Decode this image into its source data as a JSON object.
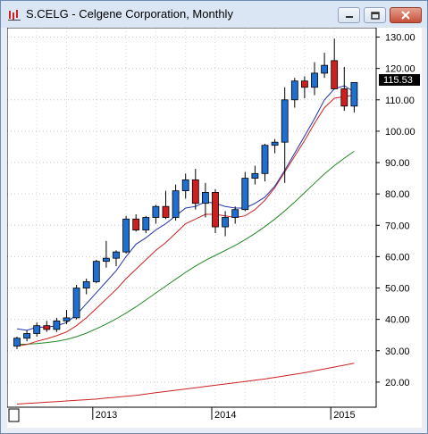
{
  "window": {
    "title": "S.CELG - Celgene Corporation, Monthly",
    "buttons": [
      {
        "name": "minimize-button",
        "icon": "minimize-icon"
      },
      {
        "name": "maximize-button",
        "icon": "maximize-icon"
      },
      {
        "name": "close-button",
        "icon": "close-icon"
      }
    ]
  },
  "chart_data": {
    "type": "candlestick",
    "title": "",
    "last_price_label": "115.53",
    "colors": {
      "up": "#1f6fd1",
      "down": "#cc1f1f",
      "ma_fast": "#2233aa",
      "ma_mid": "#cc2222",
      "ma_slow": "#228822",
      "ma_long": "#cc2222"
    },
    "ylim": [
      12,
      133
    ],
    "y_ticks": [
      20,
      30,
      40,
      50,
      60,
      70,
      80,
      90,
      100,
      110,
      120,
      130
    ],
    "y_tick_labels": [
      "20.00",
      "30.00",
      "40.00",
      "50.00",
      "60.00",
      "70.00",
      "80.00",
      "90.00",
      "100.00",
      "110.00",
      "120.00",
      "130.00"
    ],
    "x_year_labels": [
      {
        "label": "2013",
        "bar_index": 8
      },
      {
        "label": "2014",
        "bar_index": 20
      },
      {
        "label": "2015",
        "bar_index": 32
      }
    ],
    "candles": [
      {
        "o": 31.5,
        "h": 34.5,
        "l": 30.5,
        "c": 34.0
      },
      {
        "o": 34.0,
        "h": 36.5,
        "l": 33.0,
        "c": 35.5
      },
      {
        "o": 35.5,
        "h": 39.0,
        "l": 34.5,
        "c": 38.0
      },
      {
        "o": 38.0,
        "h": 39.5,
        "l": 36.0,
        "c": 36.8
      },
      {
        "o": 36.8,
        "h": 40.5,
        "l": 36.0,
        "c": 39.5
      },
      {
        "o": 39.5,
        "h": 43.0,
        "l": 38.5,
        "c": 40.5
      },
      {
        "o": 40.5,
        "h": 51.0,
        "l": 40.0,
        "c": 50.0
      },
      {
        "o": 50.0,
        "h": 53.0,
        "l": 48.0,
        "c": 52.0
      },
      {
        "o": 52.0,
        "h": 59.0,
        "l": 51.5,
        "c": 58.5
      },
      {
        "o": 58.5,
        "h": 65.0,
        "l": 56.5,
        "c": 59.5
      },
      {
        "o": 59.5,
        "h": 62.0,
        "l": 57.0,
        "c": 61.5
      },
      {
        "o": 61.5,
        "h": 73.0,
        "l": 61.0,
        "c": 72.0
      },
      {
        "o": 72.0,
        "h": 73.5,
        "l": 68.0,
        "c": 68.5
      },
      {
        "o": 68.5,
        "h": 73.0,
        "l": 67.5,
        "c": 72.5
      },
      {
        "o": 72.5,
        "h": 76.5,
        "l": 70.5,
        "c": 76.0
      },
      {
        "o": 76.0,
        "h": 81.0,
        "l": 72.0,
        "c": 72.5
      },
      {
        "o": 72.5,
        "h": 83.0,
        "l": 71.5,
        "c": 81.0
      },
      {
        "o": 81.0,
        "h": 86.5,
        "l": 78.5,
        "c": 84.5
      },
      {
        "o": 84.5,
        "h": 88.0,
        "l": 75.0,
        "c": 77.0
      },
      {
        "o": 77.0,
        "h": 83.5,
        "l": 72.5,
        "c": 80.5
      },
      {
        "o": 80.5,
        "h": 81.5,
        "l": 67.5,
        "c": 69.5
      },
      {
        "o": 69.5,
        "h": 74.5,
        "l": 66.5,
        "c": 72.5
      },
      {
        "o": 72.5,
        "h": 76.0,
        "l": 70.5,
        "c": 75.0
      },
      {
        "o": 75.0,
        "h": 87.0,
        "l": 74.5,
        "c": 85.0
      },
      {
        "o": 85.0,
        "h": 89.0,
        "l": 83.0,
        "c": 86.5
      },
      {
        "o": 86.5,
        "h": 96.0,
        "l": 84.0,
        "c": 95.5
      },
      {
        "o": 95.5,
        "h": 97.5,
        "l": 93.0,
        "c": 96.5
      },
      {
        "o": 96.5,
        "h": 114.0,
        "l": 83.5,
        "c": 110.0
      },
      {
        "o": 110.0,
        "h": 117.0,
        "l": 107.5,
        "c": 116.0
      },
      {
        "o": 116.0,
        "h": 117.5,
        "l": 110.5,
        "c": 114.0
      },
      {
        "o": 114.0,
        "h": 122.0,
        "l": 111.5,
        "c": 118.5
      },
      {
        "o": 118.5,
        "h": 125.0,
        "l": 117.0,
        "c": 121.0
      },
      {
        "o": 122.5,
        "h": 129.5,
        "l": 114.0,
        "c": 113.5
      },
      {
        "o": 113.5,
        "h": 120.5,
        "l": 106.5,
        "c": 108.0
      },
      {
        "o": 108.0,
        "h": 115.5,
        "l": 106.0,
        "c": 115.53
      }
    ],
    "ma_fast": [
      37.0,
      36.5,
      37.5,
      37.5,
      38.0,
      39.0,
      41.5,
      45.0,
      48.5,
      52.0,
      55.5,
      60.0,
      64.0,
      66.0,
      68.5,
      70.5,
      73.0,
      75.5,
      76.0,
      77.5,
      77.0,
      76.0,
      75.5,
      75.5,
      77.0,
      79.0,
      82.5,
      87.5,
      93.0,
      98.5,
      104.0,
      110.0,
      113.5,
      114.5,
      112.5
    ],
    "ma_mid": [
      31.5,
      32.0,
      33.0,
      33.8,
      34.8,
      36.0,
      38.0,
      40.5,
      43.5,
      46.5,
      49.5,
      53.0,
      56.0,
      59.0,
      62.0,
      64.5,
      67.5,
      70.5,
      72.0,
      73.5,
      73.5,
      73.0,
      72.5,
      73.0,
      75.0,
      78.0,
      82.0,
      87.0,
      92.0,
      97.0,
      102.5,
      107.5,
      110.5,
      111.0,
      111.5
    ],
    "ma_slow": [
      32.0,
      32.1,
      32.3,
      32.6,
      33.0,
      33.6,
      34.5,
      35.6,
      37.0,
      38.5,
      40.2,
      42.0,
      44.0,
      46.2,
      48.4,
      50.6,
      52.8,
      55.0,
      57.0,
      58.8,
      60.4,
      62.0,
      63.6,
      65.4,
      67.4,
      69.6,
      72.0,
      74.6,
      77.4,
      80.4,
      83.4,
      86.4,
      89.0,
      91.4,
      93.6
    ],
    "ma_long": [
      13.0,
      13.2,
      13.4,
      13.6,
      13.8,
      14.0,
      14.2,
      14.4,
      14.6,
      14.9,
      15.2,
      15.5,
      15.8,
      16.2,
      16.6,
      17.0,
      17.4,
      17.8,
      18.2,
      18.6,
      19.0,
      19.4,
      19.8,
      20.2,
      20.6,
      21.0,
      21.5,
      22.0,
      22.5,
      23.0,
      23.6,
      24.2,
      24.8,
      25.4,
      26.0
    ]
  }
}
